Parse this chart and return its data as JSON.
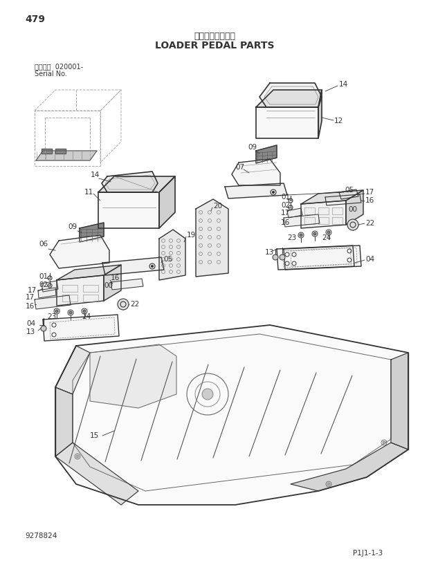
{
  "title_jp": "ローダベダル部品",
  "title_en": "LOADER PEDAL PARTS",
  "page_num": "479",
  "serial_label": "適用号機  020001-",
  "serial_label2": "Serial No.",
  "drawing_num": "9278824",
  "ref_num": "P1J1-1-3",
  "bg_color": "#ffffff",
  "line_color": "#333333",
  "lw_main": 1.0,
  "lw_thin": 0.6
}
